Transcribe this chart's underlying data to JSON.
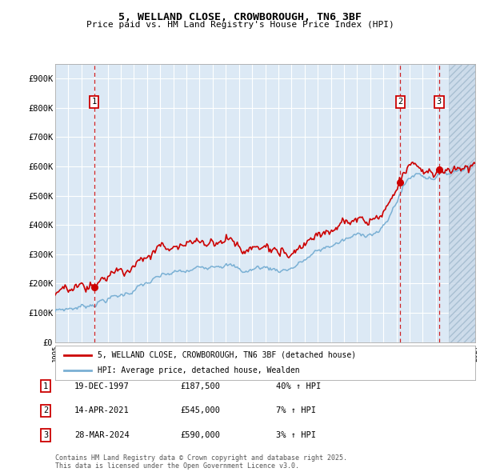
{
  "title": "5, WELLAND CLOSE, CROWBOROUGH, TN6 3BF",
  "subtitle": "Price paid vs. HM Land Registry's House Price Index (HPI)",
  "background_color": "#dce9f5",
  "plot_bg_color": "#dce9f5",
  "red_line_color": "#cc0000",
  "blue_line_color": "#7ab0d4",
  "dashed_line_color": "#cc0000",
  "grid_color": "#ffffff",
  "ylim": [
    0,
    950000
  ],
  "yticks": [
    0,
    100000,
    200000,
    300000,
    400000,
    500000,
    600000,
    700000,
    800000,
    900000
  ],
  "ytick_labels": [
    "£0",
    "£100K",
    "£200K",
    "£300K",
    "£400K",
    "£500K",
    "£600K",
    "£700K",
    "£800K",
    "£900K"
  ],
  "xmin_year": 1995,
  "xmax_year": 2027,
  "xtick_years": [
    1995,
    1996,
    1997,
    1998,
    1999,
    2000,
    2001,
    2002,
    2003,
    2004,
    2005,
    2006,
    2007,
    2008,
    2009,
    2010,
    2011,
    2012,
    2013,
    2014,
    2015,
    2016,
    2017,
    2018,
    2019,
    2020,
    2021,
    2022,
    2023,
    2024,
    2025,
    2026,
    2027
  ],
  "sale_year_floats": [
    1997.9583,
    2021.2917,
    2024.25
  ],
  "sale_prices": [
    187500,
    545000,
    590000
  ],
  "sale_labels": [
    "1",
    "2",
    "3"
  ],
  "sale_info": [
    {
      "label": "1",
      "date": "19-DEC-1997",
      "price": "£187,500",
      "hpi": "40% ↑ HPI"
    },
    {
      "label": "2",
      "date": "14-APR-2021",
      "price": "£545,000",
      "hpi": "7% ↑ HPI"
    },
    {
      "label": "3",
      "date": "28-MAR-2024",
      "price": "£590,000",
      "hpi": "3% ↑ HPI"
    }
  ],
  "legend_line1": "5, WELLAND CLOSE, CROWBOROUGH, TN6 3BF (detached house)",
  "legend_line2": "HPI: Average price, detached house, Wealden",
  "footer": "Contains HM Land Registry data © Crown copyright and database right 2025.\nThis data is licensed under the Open Government Licence v3.0.",
  "future_start": 2025.0
}
